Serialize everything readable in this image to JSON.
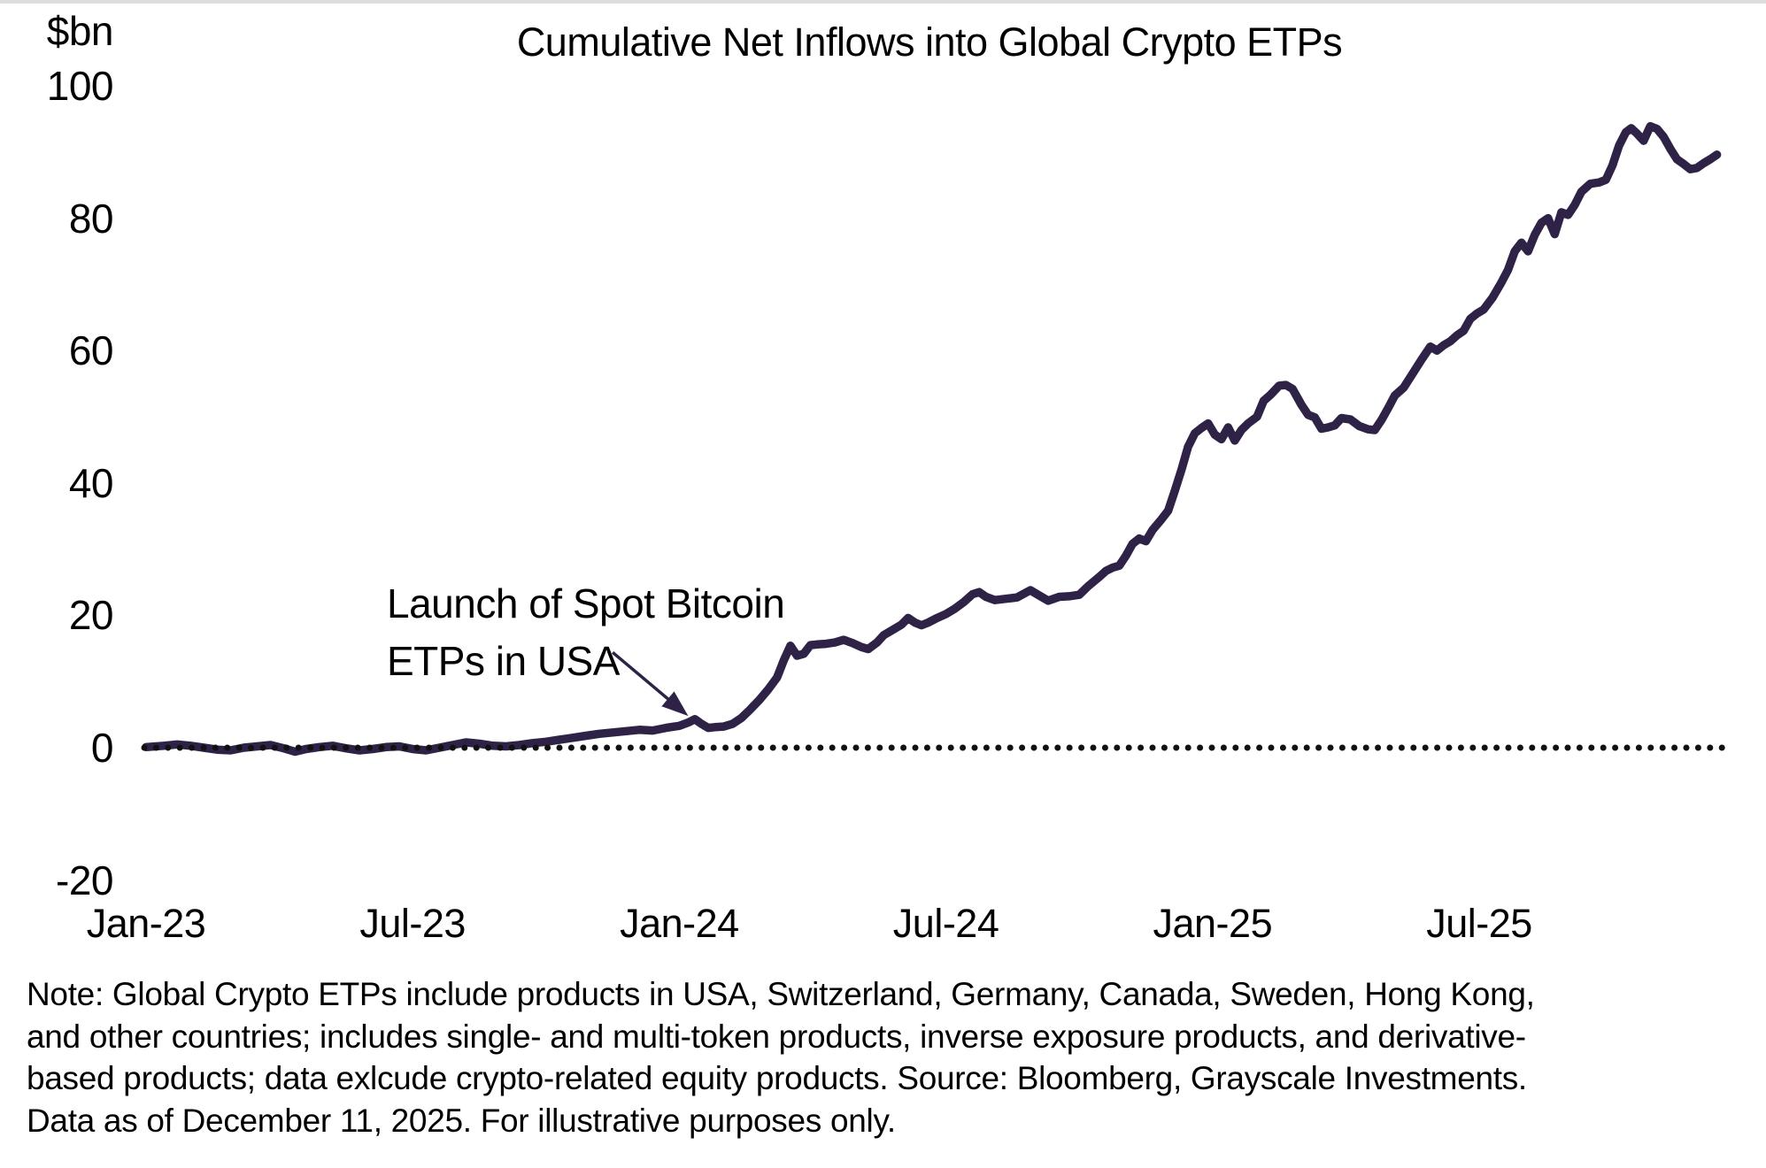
{
  "chart_data": {
    "type": "line",
    "title": "Cumulative Net Inflows into Global Crypto ETPs",
    "unit_label": "$bn",
    "xlabel": "",
    "ylabel": "$bn",
    "ylim": [
      -20,
      100
    ],
    "xlim_months": [
      0,
      35.6
    ],
    "grid": "off",
    "zero_line_style": "dotted-black",
    "y_ticks": [
      100,
      80,
      60,
      40,
      20,
      0,
      -20
    ],
    "x_ticks": [
      {
        "label": "Jan-23",
        "month": 0
      },
      {
        "label": "Jul-23",
        "month": 6
      },
      {
        "label": "Jan-24",
        "month": 12
      },
      {
        "label": "Jul-24",
        "month": 18
      },
      {
        "label": "Jan-25",
        "month": 24
      },
      {
        "label": "Jul-25",
        "month": 30
      }
    ],
    "annotation": {
      "lines": [
        "Launch of Spot Bitcoin",
        "ETPs in USA"
      ],
      "arrow_from": [
        10.5,
        14.4
      ],
      "arrow_to": [
        12.2,
        4.8
      ]
    },
    "series": [
      {
        "name": "Cumulative net inflows into global crypto ETPs ($bn)",
        "color": "#2e2347",
        "x_unit": "months since Jan-2023",
        "points": [
          [
            0,
            0.1
          ],
          [
            0.4,
            0.3
          ],
          [
            0.7,
            0.5
          ],
          [
            1,
            0.3
          ],
          [
            1.3,
            0
          ],
          [
            1.6,
            -0.3
          ],
          [
            1.9,
            -0.4
          ],
          [
            2.2,
            0
          ],
          [
            2.5,
            0.2
          ],
          [
            2.8,
            0.4
          ],
          [
            3.1,
            -0.1
          ],
          [
            3.35,
            -0.6
          ],
          [
            3.6,
            -0.2
          ],
          [
            3.9,
            0.1
          ],
          [
            4.2,
            0.3
          ],
          [
            4.5,
            -0.1
          ],
          [
            4.8,
            -0.4
          ],
          [
            5.1,
            -0.2
          ],
          [
            5.4,
            0.1
          ],
          [
            5.7,
            0.2
          ],
          [
            6,
            -0.2
          ],
          [
            6.3,
            -0.4
          ],
          [
            6.6,
            0
          ],
          [
            6.9,
            0.4
          ],
          [
            7.2,
            0.8
          ],
          [
            7.5,
            0.6
          ],
          [
            7.8,
            0.3
          ],
          [
            8.1,
            0.2
          ],
          [
            8.4,
            0.4
          ],
          [
            8.7,
            0.7
          ],
          [
            9,
            0.9
          ],
          [
            9.3,
            1.2
          ],
          [
            9.6,
            1.5
          ],
          [
            9.9,
            1.8
          ],
          [
            10.2,
            2.1
          ],
          [
            10.5,
            2.3
          ],
          [
            10.8,
            2.5
          ],
          [
            11.1,
            2.7
          ],
          [
            11.4,
            2.6
          ],
          [
            11.7,
            3
          ],
          [
            12,
            3.3
          ],
          [
            12.2,
            3.8
          ],
          [
            12.35,
            4.3
          ],
          [
            12.5,
            3.6
          ],
          [
            12.65,
            3
          ],
          [
            12.8,
            3.1
          ],
          [
            13,
            3.2
          ],
          [
            13.2,
            3.6
          ],
          [
            13.4,
            4.5
          ],
          [
            13.6,
            5.8
          ],
          [
            13.8,
            7.2
          ],
          [
            14,
            8.8
          ],
          [
            14.2,
            10.6
          ],
          [
            14.35,
            13.2
          ],
          [
            14.5,
            15.4
          ],
          [
            14.65,
            13.9
          ],
          [
            14.8,
            14.2
          ],
          [
            14.95,
            15.5
          ],
          [
            15.1,
            15.6
          ],
          [
            15.3,
            15.7
          ],
          [
            15.5,
            15.9
          ],
          [
            15.7,
            16.3
          ],
          [
            15.9,
            15.8
          ],
          [
            16.1,
            15.2
          ],
          [
            16.25,
            14.9
          ],
          [
            16.45,
            15.9
          ],
          [
            16.6,
            17
          ],
          [
            16.8,
            17.8
          ],
          [
            17,
            18.6
          ],
          [
            17.15,
            19.6
          ],
          [
            17.3,
            18.9
          ],
          [
            17.45,
            18.5
          ],
          [
            17.6,
            18.9
          ],
          [
            17.8,
            19.6
          ],
          [
            18,
            20.2
          ],
          [
            18.2,
            21
          ],
          [
            18.4,
            22
          ],
          [
            18.6,
            23.2
          ],
          [
            18.75,
            23.5
          ],
          [
            18.9,
            22.8
          ],
          [
            19.1,
            22.3
          ],
          [
            19.35,
            22.5
          ],
          [
            19.6,
            22.7
          ],
          [
            19.9,
            23.8
          ],
          [
            20.1,
            23
          ],
          [
            20.3,
            22.2
          ],
          [
            20.55,
            22.8
          ],
          [
            20.8,
            22.9
          ],
          [
            21,
            23.1
          ],
          [
            21.2,
            24.4
          ],
          [
            21.45,
            25.8
          ],
          [
            21.6,
            26.7
          ],
          [
            21.75,
            27.2
          ],
          [
            21.9,
            27.5
          ],
          [
            22.05,
            29
          ],
          [
            22.2,
            30.8
          ],
          [
            22.35,
            31.6
          ],
          [
            22.5,
            31.2
          ],
          [
            22.65,
            32.9
          ],
          [
            22.85,
            34.5
          ],
          [
            23,
            35.8
          ],
          [
            23.15,
            38.8
          ],
          [
            23.3,
            42
          ],
          [
            23.45,
            45.5
          ],
          [
            23.6,
            47.5
          ],
          [
            23.75,
            48.3
          ],
          [
            23.9,
            49
          ],
          [
            24.05,
            47.3
          ],
          [
            24.2,
            46.6
          ],
          [
            24.35,
            48.4
          ],
          [
            24.5,
            46.4
          ],
          [
            24.65,
            48
          ],
          [
            24.8,
            49
          ],
          [
            25,
            50
          ],
          [
            25.15,
            52.4
          ],
          [
            25.3,
            53.3
          ],
          [
            25.5,
            54.7
          ],
          [
            25.65,
            54.8
          ],
          [
            25.8,
            54.2
          ],
          [
            26,
            51.8
          ],
          [
            26.15,
            50.3
          ],
          [
            26.3,
            49.9
          ],
          [
            26.45,
            48.2
          ],
          [
            26.6,
            48.4
          ],
          [
            26.75,
            48.7
          ],
          [
            26.9,
            49.8
          ],
          [
            27.1,
            49.6
          ],
          [
            27.3,
            48.6
          ],
          [
            27.5,
            48.1
          ],
          [
            27.65,
            48
          ],
          [
            27.8,
            49.5
          ],
          [
            27.95,
            51.3
          ],
          [
            28.1,
            53.2
          ],
          [
            28.3,
            54.4
          ],
          [
            28.5,
            56.5
          ],
          [
            28.7,
            58.6
          ],
          [
            28.9,
            60.6
          ],
          [
            29.05,
            60
          ],
          [
            29.2,
            60.8
          ],
          [
            29.35,
            61.4
          ],
          [
            29.5,
            62.3
          ],
          [
            29.65,
            63
          ],
          [
            29.8,
            64.8
          ],
          [
            29.95,
            65.6
          ],
          [
            30.1,
            66.2
          ],
          [
            30.3,
            68
          ],
          [
            30.5,
            70.3
          ],
          [
            30.65,
            72.2
          ],
          [
            30.8,
            75
          ],
          [
            30.95,
            76.3
          ],
          [
            31.1,
            75
          ],
          [
            31.25,
            77.5
          ],
          [
            31.4,
            79.3
          ],
          [
            31.55,
            80
          ],
          [
            31.7,
            77.6
          ],
          [
            31.85,
            80.9
          ],
          [
            32,
            80.5
          ],
          [
            32.15,
            82
          ],
          [
            32.3,
            84
          ],
          [
            32.5,
            85.2
          ],
          [
            32.7,
            85.4
          ],
          [
            32.85,
            85.8
          ],
          [
            33,
            88
          ],
          [
            33.15,
            91
          ],
          [
            33.3,
            93
          ],
          [
            33.42,
            93.6
          ],
          [
            33.55,
            92.8
          ],
          [
            33.7,
            91.7
          ],
          [
            33.85,
            93.9
          ],
          [
            34,
            93.5
          ],
          [
            34.15,
            92.3
          ],
          [
            34.3,
            90.5
          ],
          [
            34.45,
            88.9
          ],
          [
            34.6,
            88.2
          ],
          [
            34.75,
            87.4
          ],
          [
            34.9,
            87.6
          ],
          [
            35.05,
            88.3
          ],
          [
            35.2,
            88.9
          ],
          [
            35.35,
            89.6
          ]
        ]
      }
    ]
  },
  "footnote": {
    "lines": [
      "Note: Global Crypto ETPs include products in USA, Switzerland, Germany, Canada, Sweden, Hong Kong,",
      "and other countries; includes single- and multi-token products, inverse exposure products, and derivative-",
      "based products; data exlcude crypto-related equity products. Source: Bloomberg, Grayscale Investments.",
      "Data as of December 11, 2025. For illustrative purposes only."
    ]
  }
}
